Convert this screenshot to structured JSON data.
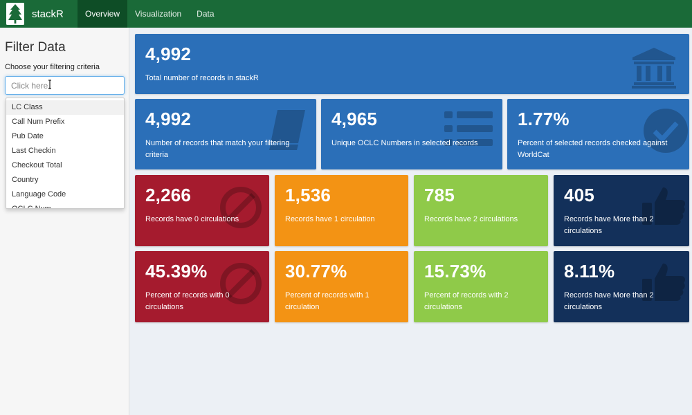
{
  "navbar": {
    "brand": "stackR",
    "tabs": [
      {
        "label": "Overview",
        "active": true
      },
      {
        "label": "Visualization",
        "active": false
      },
      {
        "label": "Data",
        "active": false
      }
    ]
  },
  "sidebar": {
    "title": "Filter Data",
    "filter_label": "Choose your filtering criteria",
    "input_placeholder": "Click here.",
    "options": [
      "LC Class",
      "Call Num Prefix",
      "Pub Date",
      "Last Checkin",
      "Checkout Total",
      "Country",
      "Language Code",
      "OCLC Num"
    ]
  },
  "boxes": {
    "total": {
      "value": "4,992",
      "desc": "Total number of records in stackR",
      "icon": "institution-icon"
    },
    "match": {
      "value": "4,992",
      "desc": "Number of records that match your filtering criteria",
      "icon": "book-icon"
    },
    "oclc": {
      "value": "4,965",
      "desc": "Unique OCLC Numbers in selected records",
      "icon": "list-icon"
    },
    "checked": {
      "value": "1.77%",
      "desc": "Percent of selected records checked against WorldCat",
      "icon": "check-circle-icon"
    },
    "circ0": {
      "value": "2,266",
      "desc": "Records have 0 circulations",
      "icon": "ban-icon"
    },
    "circ1": {
      "value": "1,536",
      "desc": "Records have 1 circulation"
    },
    "circ2": {
      "value": "785",
      "desc": "Records have 2 circulations"
    },
    "circ_more": {
      "value": "405",
      "desc": "Records have More than 2 circulations",
      "icon": "thumbs-up-icon"
    },
    "pct0": {
      "value": "45.39%",
      "desc": "Percent of records with 0 circulations",
      "icon": "ban-icon"
    },
    "pct1": {
      "value": "30.77%",
      "desc": "Percent of records with 1 circulation"
    },
    "pct2": {
      "value": "15.73%",
      "desc": "Percent of records with 2 circulations"
    },
    "pct_more": {
      "value": "8.11%",
      "desc": "Records have More than 2 circulations",
      "icon": "thumbs-up-icon"
    }
  },
  "colors": {
    "navbar": "#1a6a38",
    "blue": "#2b6fb8",
    "red": "#a51b2e",
    "orange": "#f39314",
    "green": "#8fca49",
    "navy": "#13305a"
  }
}
